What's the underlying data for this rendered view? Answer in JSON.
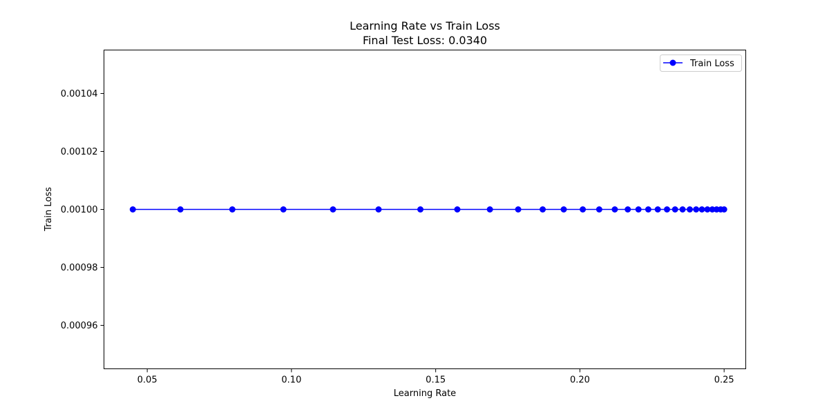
{
  "chart_data": {
    "type": "line",
    "title": "Learning Rate vs Train Loss",
    "subtitle": "Final Test Loss: 0.0340",
    "xlabel": "Learning Rate",
    "ylabel": "Train Loss",
    "xlim": [
      0.035,
      0.2575
    ],
    "ylim": [
      0.000945,
      0.001055
    ],
    "x_ticks": [
      0.05,
      0.1,
      0.15,
      0.2,
      0.25
    ],
    "x_tick_labels": [
      "0.05",
      "0.10",
      "0.15",
      "0.20",
      "0.25"
    ],
    "y_ticks": [
      0.00096,
      0.00098,
      0.001,
      0.00102,
      0.00104
    ],
    "y_tick_labels": [
      "0.00096",
      "0.00098",
      "0.00100",
      "0.00102",
      "0.00104"
    ],
    "grid": false,
    "legend_position": "top-right",
    "series": [
      {
        "name": "Train Loss",
        "color": "#0000ff",
        "marker": "circle",
        "x": [
          0.045,
          0.0615,
          0.0795,
          0.0972,
          0.1144,
          0.1302,
          0.1447,
          0.1575,
          0.1688,
          0.1786,
          0.1871,
          0.1944,
          0.201,
          0.2067,
          0.2121,
          0.2166,
          0.2203,
          0.2237,
          0.227,
          0.2302,
          0.233,
          0.2356,
          0.2381,
          0.2403,
          0.2423,
          0.2442,
          0.2459,
          0.2474,
          0.2488,
          0.25
        ],
        "y": [
          0.001,
          0.001,
          0.001,
          0.001,
          0.001,
          0.001,
          0.001,
          0.001,
          0.001,
          0.001,
          0.001,
          0.001,
          0.001,
          0.001,
          0.001,
          0.001,
          0.001,
          0.001,
          0.001,
          0.001,
          0.001,
          0.001,
          0.001,
          0.001,
          0.001,
          0.001,
          0.001,
          0.001,
          0.001,
          0.001
        ]
      }
    ]
  }
}
